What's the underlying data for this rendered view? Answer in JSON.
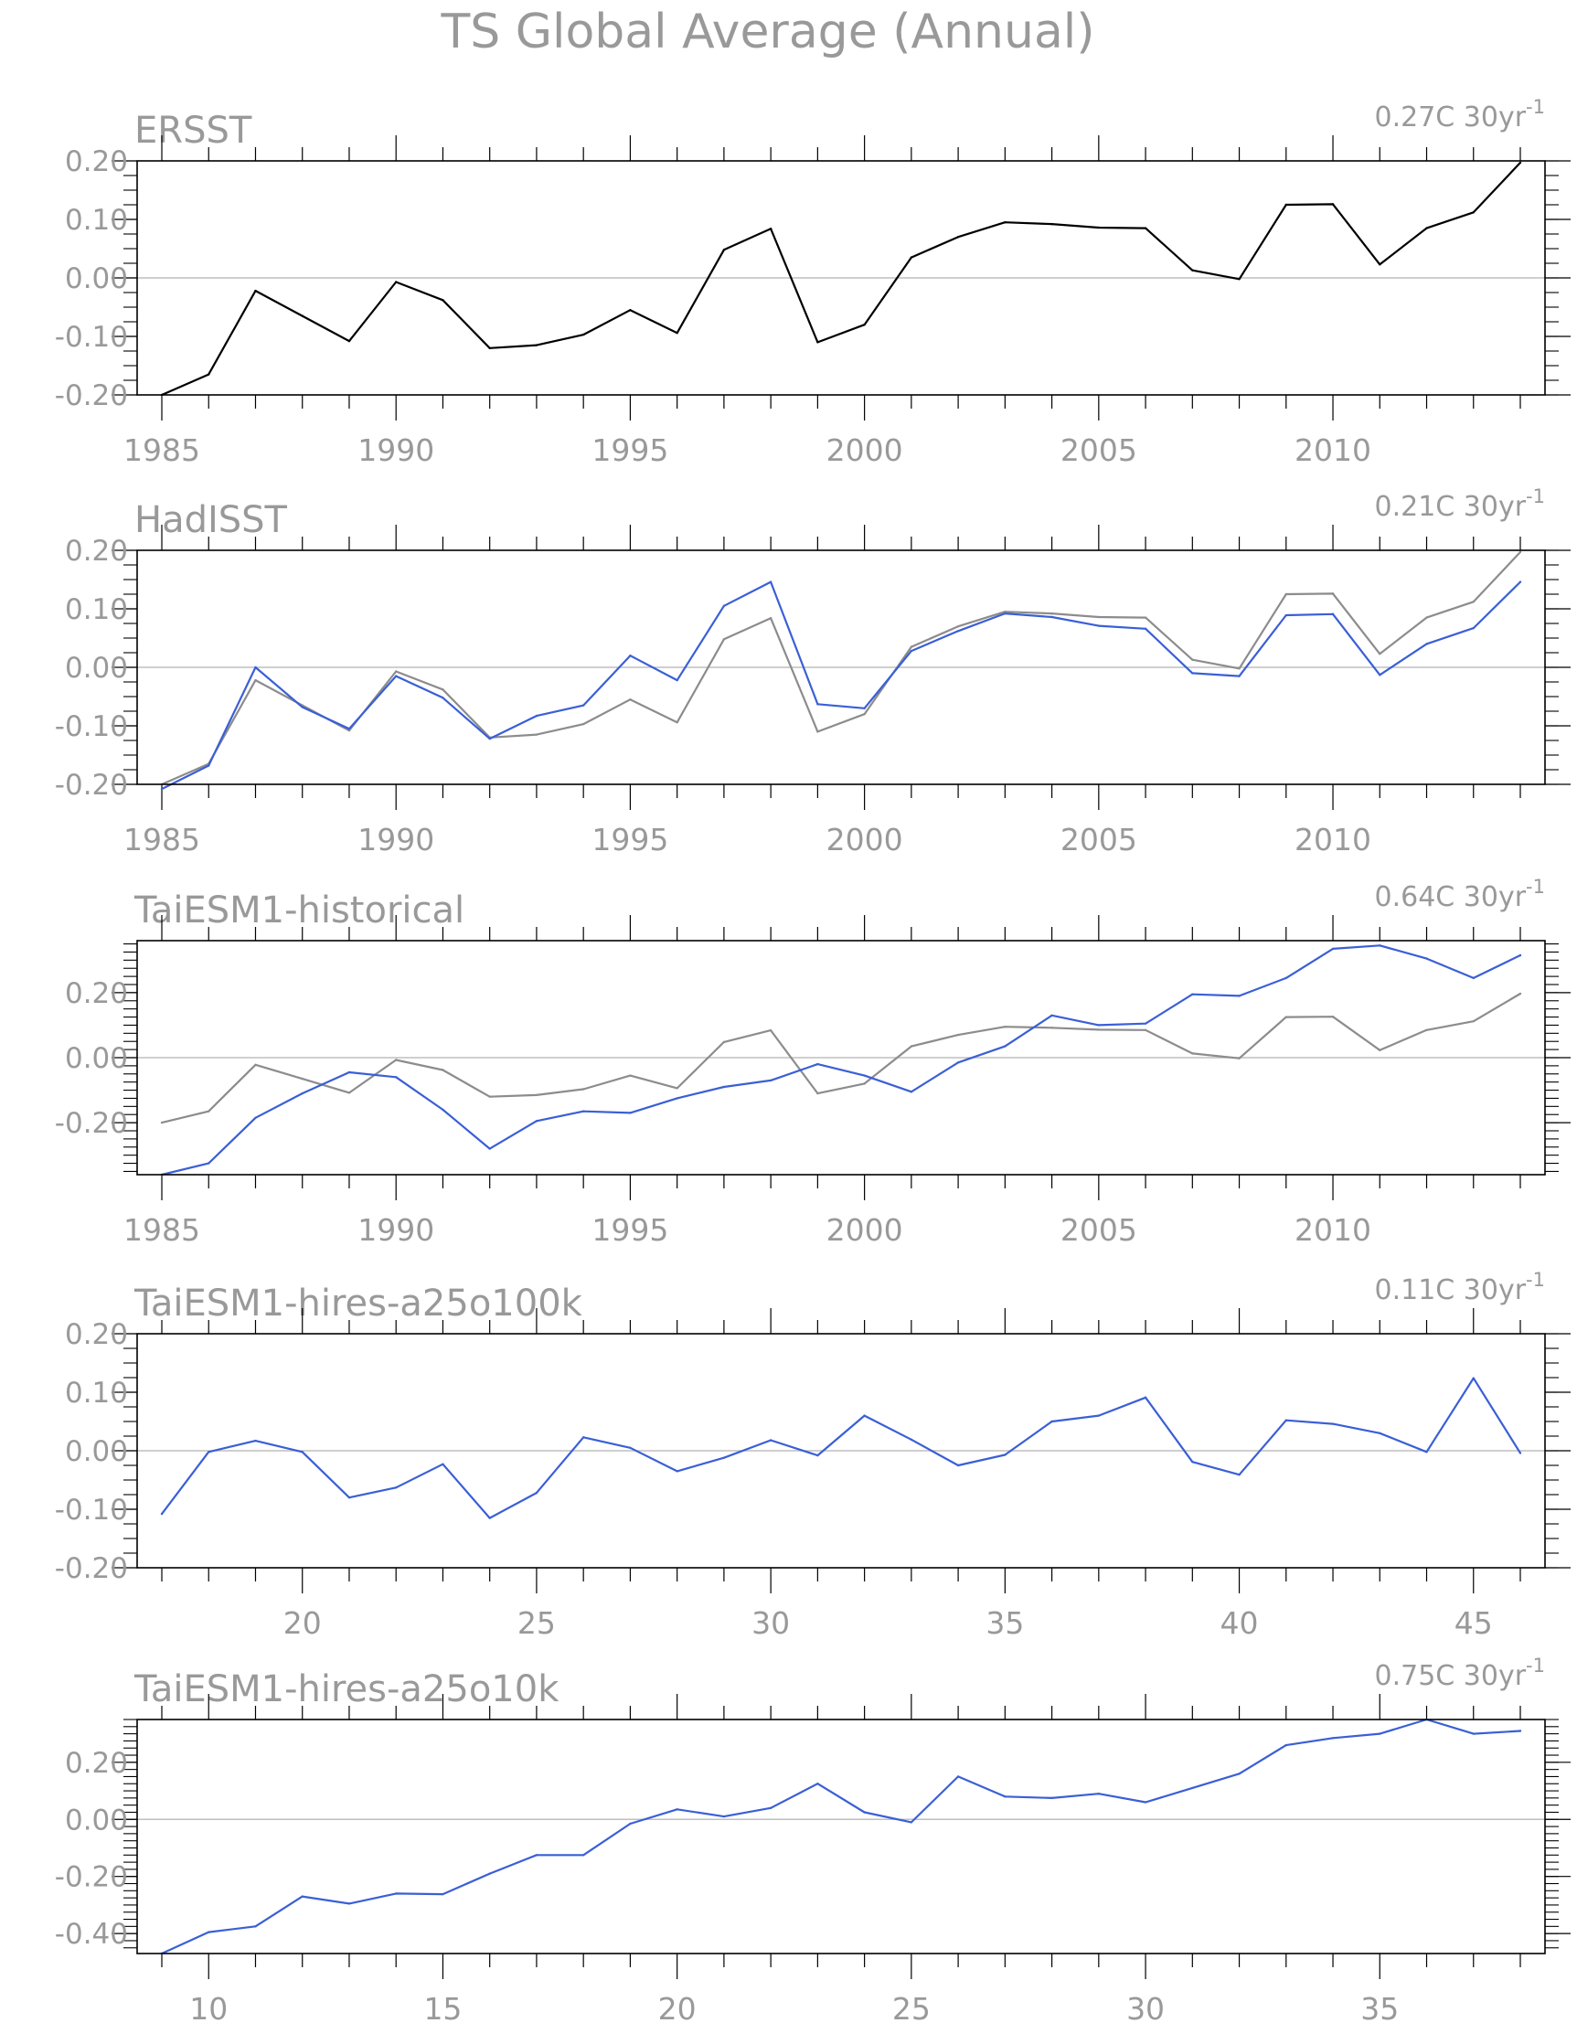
{
  "figure_title": "TS Global Average (Annual)",
  "colors": {
    "ink": "#000000",
    "text": "#999999",
    "reference": "#8c8c8c",
    "model": "#3a5fd6",
    "zero_line": "#bfbfbf"
  },
  "chart_data": [
    {
      "type": "line",
      "title": "ERSST",
      "trend_value": "0.27C",
      "trend_unit": "30yr",
      "trend_exp": "-1",
      "xlim": [
        1985,
        2014
      ],
      "ylim": [
        -0.2,
        0.2
      ],
      "yticks": [
        0.2,
        0.1,
        0.0,
        -0.1,
        -0.2
      ],
      "ytick_labels": [
        "0.20",
        "0.10",
        "0.00",
        "-0.10",
        "-0.20"
      ],
      "xticks": [
        1985,
        1990,
        1995,
        2000,
        2005,
        2010
      ],
      "xtick_labels": [
        "1985",
        "1990",
        "1995",
        "2000",
        "2005",
        "2010"
      ],
      "x": [
        1985,
        1986,
        1987,
        1988,
        1989,
        1990,
        1991,
        1992,
        1993,
        1994,
        1995,
        1996,
        1997,
        1998,
        1999,
        2000,
        2001,
        2002,
        2003,
        2004,
        2005,
        2006,
        2007,
        2008,
        2009,
        2010,
        2011,
        2012,
        2013,
        2014
      ],
      "series": [
        {
          "color": "#000000",
          "values": [
            -0.2,
            -0.165,
            -0.022,
            -0.065,
            -0.108,
            -0.007,
            -0.038,
            -0.12,
            -0.115,
            -0.097,
            -0.055,
            -0.094,
            0.048,
            0.084,
            -0.11,
            -0.08,
            0.035,
            0.07,
            0.095,
            0.092,
            0.086,
            0.085,
            0.013,
            -0.002,
            0.125,
            0.126,
            0.023,
            0.085,
            0.112,
            0.197
          ]
        }
      ]
    },
    {
      "type": "line",
      "title": "HadISST",
      "trend_value": "0.21C",
      "trend_unit": "30yr",
      "trend_exp": "-1",
      "xlim": [
        1985,
        2014
      ],
      "ylim": [
        -0.2,
        0.2
      ],
      "yticks": [
        0.2,
        0.1,
        0.0,
        -0.1,
        -0.2
      ],
      "ytick_labels": [
        "0.20",
        "0.10",
        "0.00",
        "-0.10",
        "-0.20"
      ],
      "xticks": [
        1985,
        1990,
        1995,
        2000,
        2005,
        2010
      ],
      "xtick_labels": [
        "1985",
        "1990",
        "1995",
        "2000",
        "2005",
        "2010"
      ],
      "x": [
        1985,
        1986,
        1987,
        1988,
        1989,
        1990,
        1991,
        1992,
        1993,
        1994,
        1995,
        1996,
        1997,
        1998,
        1999,
        2000,
        2001,
        2002,
        2003,
        2004,
        2005,
        2006,
        2007,
        2008,
        2009,
        2010,
        2011,
        2012,
        2013,
        2014
      ],
      "series": [
        {
          "color": "#8c8c8c",
          "values": [
            -0.2,
            -0.165,
            -0.022,
            -0.065,
            -0.108,
            -0.007,
            -0.038,
            -0.12,
            -0.115,
            -0.097,
            -0.055,
            -0.094,
            0.048,
            0.084,
            -0.11,
            -0.08,
            0.035,
            0.07,
            0.095,
            0.092,
            0.086,
            0.085,
            0.013,
            -0.002,
            0.125,
            0.126,
            0.023,
            0.085,
            0.112,
            0.197
          ]
        },
        {
          "color": "#3a5fd6",
          "values": [
            -0.208,
            -0.168,
            0.0,
            -0.068,
            -0.105,
            -0.015,
            -0.052,
            -0.122,
            -0.083,
            -0.065,
            0.02,
            -0.022,
            0.105,
            0.146,
            -0.063,
            -0.07,
            0.028,
            0.062,
            0.092,
            0.086,
            0.071,
            0.066,
            -0.01,
            -0.015,
            0.089,
            0.091,
            -0.013,
            0.04,
            0.067,
            0.146
          ]
        }
      ]
    },
    {
      "type": "line",
      "title": "TaiESM1-historical",
      "trend_value": "0.64C",
      "trend_unit": "30yr",
      "trend_exp": "-1",
      "xlim": [
        1985,
        2014
      ],
      "ylim": [
        -0.36,
        0.36
      ],
      "yticks": [
        0.2,
        0.0,
        -0.2
      ],
      "ytick_labels": [
        "0.20",
        "0.00",
        "-0.20"
      ],
      "xticks": [
        1985,
        1990,
        1995,
        2000,
        2005,
        2010
      ],
      "xtick_labels": [
        "1985",
        "1990",
        "1995",
        "2000",
        "2005",
        "2010"
      ],
      "x": [
        1985,
        1986,
        1987,
        1988,
        1989,
        1990,
        1991,
        1992,
        1993,
        1994,
        1995,
        1996,
        1997,
        1998,
        1999,
        2000,
        2001,
        2002,
        2003,
        2004,
        2005,
        2006,
        2007,
        2008,
        2009,
        2010,
        2011,
        2012,
        2013,
        2014
      ],
      "series": [
        {
          "color": "#8c8c8c",
          "values": [
            -0.2,
            -0.165,
            -0.022,
            -0.065,
            -0.108,
            -0.007,
            -0.038,
            -0.12,
            -0.115,
            -0.097,
            -0.055,
            -0.094,
            0.048,
            0.084,
            -0.11,
            -0.08,
            0.035,
            0.07,
            0.095,
            0.092,
            0.086,
            0.085,
            0.013,
            -0.002,
            0.125,
            0.126,
            0.023,
            0.085,
            0.112,
            0.197
          ]
        },
        {
          "color": "#3a5fd6",
          "values": [
            -0.36,
            -0.325,
            -0.185,
            -0.11,
            -0.045,
            -0.06,
            -0.16,
            -0.28,
            -0.195,
            -0.165,
            -0.17,
            -0.125,
            -0.09,
            -0.07,
            -0.02,
            -0.055,
            -0.105,
            -0.015,
            0.035,
            0.13,
            0.1,
            0.105,
            0.195,
            0.19,
            0.245,
            0.335,
            0.345,
            0.305,
            0.245,
            0.315
          ]
        }
      ]
    },
    {
      "type": "line",
      "title": "TaiESM1-hires-a25o100k",
      "trend_value": "0.11C",
      "trend_unit": "30yr",
      "trend_exp": "-1",
      "xlim": [
        17,
        46
      ],
      "ylim": [
        -0.2,
        0.2
      ],
      "yticks": [
        0.2,
        0.1,
        0.0,
        -0.1,
        -0.2
      ],
      "ytick_labels": [
        "0.20",
        "0.10",
        "0.00",
        "-0.10",
        "-0.20"
      ],
      "xticks": [
        20,
        25,
        30,
        35,
        40,
        45
      ],
      "xtick_labels": [
        "20",
        "25",
        "30",
        "35",
        "40",
        "45"
      ],
      "x": [
        17,
        18,
        19,
        20,
        21,
        22,
        23,
        24,
        25,
        26,
        27,
        28,
        29,
        30,
        31,
        32,
        33,
        34,
        35,
        36,
        37,
        38,
        39,
        40,
        41,
        42,
        43,
        44,
        45,
        46
      ],
      "series": [
        {
          "color": "#3a5fd6",
          "values": [
            -0.108,
            -0.002,
            0.017,
            -0.002,
            -0.08,
            -0.063,
            -0.023,
            -0.115,
            -0.072,
            0.023,
            0.005,
            -0.035,
            -0.012,
            0.018,
            -0.008,
            0.06,
            0.019,
            -0.025,
            -0.007,
            0.05,
            0.06,
            0.091,
            -0.019,
            -0.041,
            0.052,
            0.046,
            0.03,
            -0.002,
            0.124,
            -0.004
          ]
        }
      ]
    },
    {
      "type": "line",
      "title": "TaiESM1-hires-a25o10k",
      "trend_value": "0.75C",
      "trend_unit": "30yr",
      "trend_exp": "-1",
      "xlim": [
        9,
        38
      ],
      "ylim": [
        -0.47,
        0.35
      ],
      "yticks": [
        0.2,
        0.0,
        -0.2,
        -0.4
      ],
      "ytick_labels": [
        "0.20",
        "0.00",
        "-0.20",
        "-0.40"
      ],
      "xticks": [
        10,
        15,
        20,
        25,
        30,
        35
      ],
      "xtick_labels": [
        "10",
        "15",
        "20",
        "25",
        "30",
        "35"
      ],
      "x": [
        9,
        10,
        11,
        12,
        13,
        14,
        15,
        16,
        17,
        18,
        19,
        20,
        21,
        22,
        23,
        24,
        25,
        26,
        27,
        28,
        29,
        30,
        31,
        32,
        33,
        34,
        35,
        36,
        37,
        38
      ],
      "series": [
        {
          "color": "#3a5fd6",
          "values": [
            -0.47,
            -0.395,
            -0.375,
            -0.27,
            -0.295,
            -0.26,
            -0.262,
            -0.19,
            -0.125,
            -0.125,
            -0.015,
            0.035,
            0.01,
            0.04,
            0.125,
            0.025,
            -0.01,
            0.15,
            0.08,
            0.075,
            0.09,
            0.06,
            0.11,
            0.16,
            0.26,
            0.285,
            0.3,
            0.35,
            0.3,
            0.31
          ]
        }
      ]
    }
  ]
}
